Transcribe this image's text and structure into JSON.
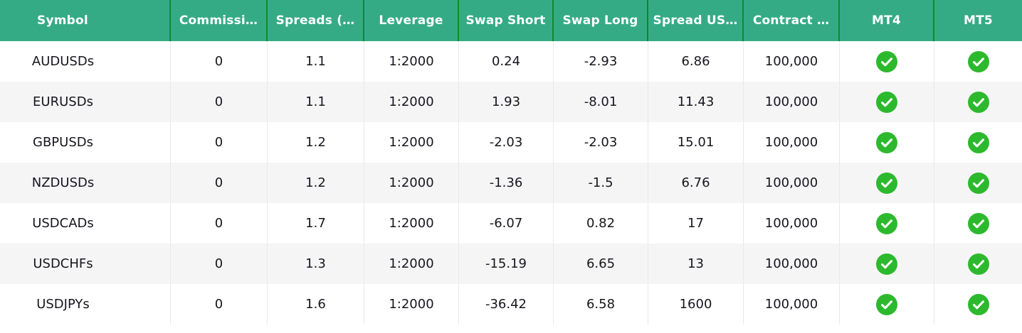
{
  "colors": {
    "header-bg": "#35ab85",
    "header-sep": "#12882e",
    "header-text": "#ffffff",
    "row-alt-bg": "#f5f5f6",
    "cell-sep": "#e9e9ea",
    "text": "#16161e",
    "check-green": "#2db92d"
  },
  "table": {
    "columns": [
      {
        "key": "symbol",
        "label": "Symbol"
      },
      {
        "key": "commission",
        "label": "Commissi…"
      },
      {
        "key": "spreads",
        "label": "Spreads (…"
      },
      {
        "key": "leverage",
        "label": "Leverage"
      },
      {
        "key": "swap_short",
        "label": "Swap Short"
      },
      {
        "key": "swap_long",
        "label": "Swap Long"
      },
      {
        "key": "spread_usd",
        "label": "Spread US…"
      },
      {
        "key": "contract",
        "label": "Contract …"
      },
      {
        "key": "mt4",
        "label": "MT4"
      },
      {
        "key": "mt5",
        "label": "MT5"
      }
    ],
    "rows": [
      {
        "symbol": "AUDUSDs",
        "commission": "0",
        "spreads": "1.1",
        "leverage": "1:2000",
        "swap_short": "0.24",
        "swap_long": "-2.93",
        "spread_usd": "6.86",
        "contract": "100,000",
        "mt4": true,
        "mt5": true
      },
      {
        "symbol": "EURUSDs",
        "commission": "0",
        "spreads": "1.1",
        "leverage": "1:2000",
        "swap_short": "1.93",
        "swap_long": "-8.01",
        "spread_usd": "11.43",
        "contract": "100,000",
        "mt4": true,
        "mt5": true
      },
      {
        "symbol": "GBPUSDs",
        "commission": "0",
        "spreads": "1.2",
        "leverage": "1:2000",
        "swap_short": "-2.03",
        "swap_long": "-2.03",
        "spread_usd": "15.01",
        "contract": "100,000",
        "mt4": true,
        "mt5": true
      },
      {
        "symbol": "NZDUSDs",
        "commission": "0",
        "spreads": "1.2",
        "leverage": "1:2000",
        "swap_short": "-1.36",
        "swap_long": "-1.5",
        "spread_usd": "6.76",
        "contract": "100,000",
        "mt4": true,
        "mt5": true
      },
      {
        "symbol": "USDCADs",
        "commission": "0",
        "spreads": "1.7",
        "leverage": "1:2000",
        "swap_short": "-6.07",
        "swap_long": "0.82",
        "spread_usd": "17",
        "contract": "100,000",
        "mt4": true,
        "mt5": true
      },
      {
        "symbol": "USDCHFs",
        "commission": "0",
        "spreads": "1.3",
        "leverage": "1:2000",
        "swap_short": "-15.19",
        "swap_long": "6.65",
        "spread_usd": "13",
        "contract": "100,000",
        "mt4": true,
        "mt5": true
      },
      {
        "symbol": "USDJPYs",
        "commission": "0",
        "spreads": "1.6",
        "leverage": "1:2000",
        "swap_short": "-36.42",
        "swap_long": "6.58",
        "spread_usd": "1600",
        "contract": "100,000",
        "mt4": true,
        "mt5": true
      }
    ],
    "check_icon": "check-circle-icon"
  }
}
